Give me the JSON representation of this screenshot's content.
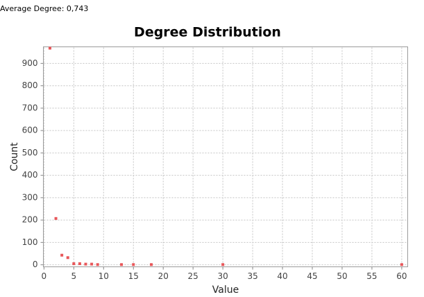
{
  "header": {
    "text": "Average Degree: 0,743"
  },
  "chart_data": {
    "type": "scatter",
    "title": "Degree Distribution",
    "x_label": "Value",
    "y_label": "Count",
    "x": [
      1,
      2,
      3,
      4,
      5,
      6,
      7,
      8,
      9,
      13,
      15,
      18,
      30,
      60
    ],
    "values": [
      968,
      207,
      43,
      32,
      5,
      5,
      3,
      3,
      1,
      1,
      1,
      1,
      1,
      1
    ],
    "color": "#e8575a",
    "xlim": [
      -0.1,
      61
    ],
    "ylim": [
      -9,
      974
    ],
    "xticks": [
      0,
      5,
      10,
      15,
      20,
      25,
      30,
      35,
      40,
      45,
      50,
      55,
      60
    ],
    "yticks": [
      0,
      100,
      200,
      300,
      400,
      500,
      600,
      700,
      800,
      900
    ],
    "grid": true
  }
}
